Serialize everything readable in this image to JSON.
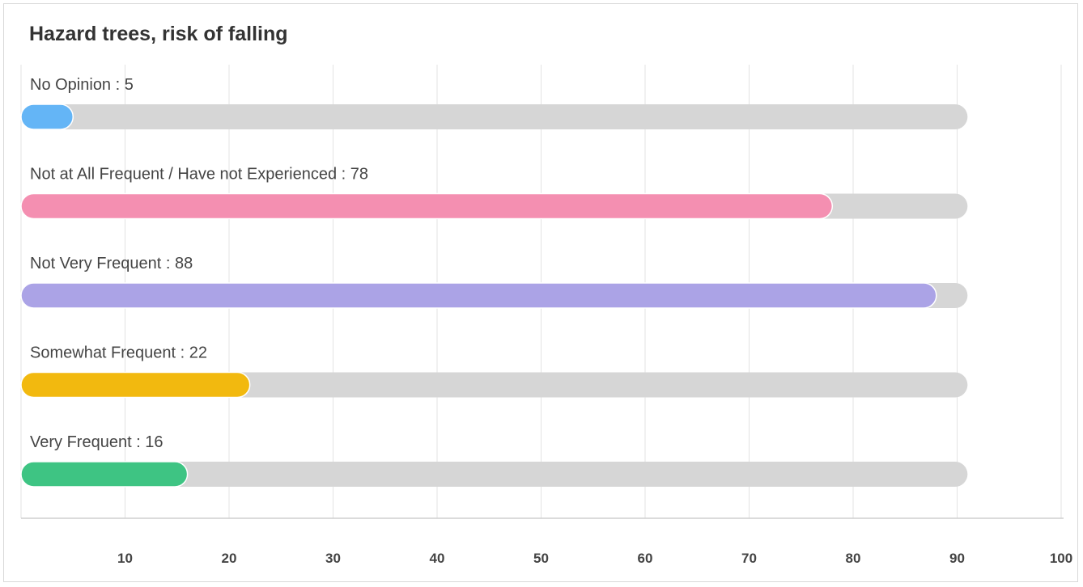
{
  "chart_data": {
    "type": "bar",
    "orientation": "horizontal",
    "title": "Hazard trees, risk of falling",
    "xlabel": "",
    "ylabel": "",
    "categories": [
      "No Opinion",
      "Not at All Frequent / Have not Experienced",
      "Not Very Frequent",
      "Somewhat Frequent",
      "Very Frequent"
    ],
    "values": [
      5,
      78,
      88,
      22,
      16
    ],
    "labels": [
      "No Opinion : 5",
      "Not at All Frequent / Have not Experienced : 78",
      "Not Very Frequent : 88",
      "Somewhat Frequent : 22",
      "Very Frequent : 16"
    ],
    "colors": [
      "#64b5f6",
      "#f48fb1",
      "#aba3e6",
      "#f2b90f",
      "#3ec483"
    ],
    "track_max": 91,
    "track_color": "#d6d6d6",
    "xlim": [
      0,
      100
    ],
    "xticks": [
      10,
      20,
      30,
      40,
      50,
      60,
      70,
      80,
      90,
      100
    ],
    "xtick_labels": [
      "10",
      "20",
      "30",
      "40",
      "50",
      "60",
      "70",
      "80",
      "90",
      "100"
    ],
    "grid": true,
    "legend": "none"
  }
}
